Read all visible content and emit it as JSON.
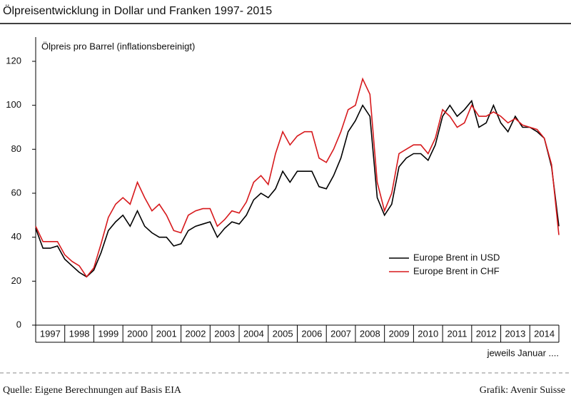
{
  "chart_data": {
    "type": "line",
    "title": "Ölpreisentwicklung in Dollar und Franken 1997- 2015",
    "y_label": "Ölpreis pro Barrel (inflationsbereinigt)",
    "x_note": "jeweils Januar ....",
    "source": "Quelle: Eigene Berechnungen auf Basis EIA",
    "credit": "Grafik: Avenir Suisse",
    "categories": [
      "1997",
      null,
      null,
      null,
      "1998",
      null,
      null,
      null,
      "1999",
      null,
      null,
      null,
      "2000",
      null,
      null,
      null,
      "2001",
      null,
      null,
      null,
      "2002",
      null,
      null,
      null,
      "2003",
      null,
      null,
      null,
      "2004",
      null,
      null,
      null,
      "2005",
      null,
      null,
      null,
      "2006",
      null,
      null,
      null,
      "2007",
      null,
      null,
      null,
      "2008",
      null,
      null,
      null,
      "2009",
      null,
      null,
      null,
      "2010",
      null,
      null,
      null,
      "2011",
      null,
      null,
      null,
      "2012",
      null,
      null,
      null,
      "2013",
      null,
      null,
      null,
      "2014",
      null,
      null,
      null,
      null
    ],
    "series": [
      {
        "name": "Europe Brent in USD",
        "color": "#000000",
        "values": [
          44,
          35,
          35,
          36,
          30,
          27,
          24,
          22,
          25,
          33,
          43,
          47,
          50,
          45,
          52,
          45,
          42,
          40,
          40,
          36,
          37,
          43,
          45,
          46,
          47,
          40,
          44,
          47,
          46,
          50,
          57,
          60,
          58,
          62,
          70,
          65,
          70,
          70,
          70,
          63,
          62,
          68,
          76,
          88,
          93,
          100,
          95,
          58,
          50,
          55,
          72,
          76,
          78,
          78,
          75,
          82,
          95,
          100,
          95,
          98,
          102,
          90,
          92,
          100,
          92,
          88,
          95,
          90,
          90,
          88,
          85,
          72,
          45
        ]
      },
      {
        "name": "Europe Brent in CHF",
        "color": "#d7191c",
        "values": [
          45,
          38,
          38,
          38,
          32,
          29,
          27,
          22,
          26,
          37,
          49,
          55,
          58,
          55,
          65,
          58,
          52,
          55,
          50,
          43,
          42,
          50,
          52,
          53,
          53,
          45,
          48,
          52,
          51,
          56,
          65,
          68,
          64,
          78,
          88,
          82,
          86,
          88,
          88,
          76,
          74,
          80,
          88,
          98,
          100,
          112,
          105,
          65,
          52,
          60,
          78,
          80,
          82,
          82,
          78,
          85,
          98,
          95,
          90,
          92,
          100,
          95,
          95,
          97,
          95,
          92,
          94,
          91,
          90,
          89,
          85,
          73,
          41
        ]
      }
    ],
    "ylim": [
      0,
      120
    ],
    "yticks": [
      0,
      20,
      40,
      60,
      80,
      100,
      120
    ],
    "legend": "lower right"
  }
}
